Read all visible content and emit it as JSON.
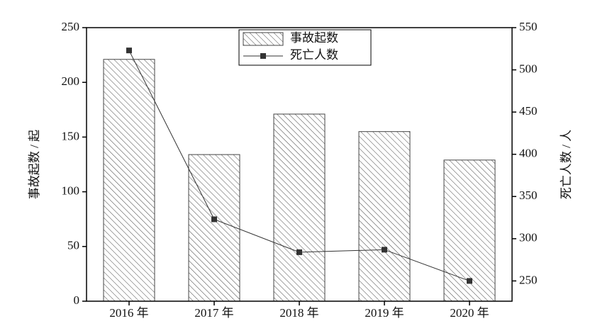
{
  "chart_data": {
    "type": "bar",
    "categories": [
      "2016 年",
      "2017 年",
      "2018 年",
      "2019 年",
      "2020 年"
    ],
    "series": [
      {
        "name": "事故起数",
        "type": "bar",
        "color": "#444444",
        "values": [
          221,
          134,
          171,
          155,
          129
        ]
      },
      {
        "name": "死亡人数",
        "type": "line",
        "axis": "y2",
        "color": "#333333",
        "values": [
          523,
          323,
          284,
          287,
          250
        ]
      }
    ],
    "ylabel": "事故起数 / 起",
    "y2label": "死亡人数 / 人",
    "ylim": [
      0,
      250
    ],
    "yticks": [
      0,
      50,
      100,
      150,
      200,
      250
    ],
    "y2lim": [
      226,
      550
    ],
    "y2ticks": [
      250,
      300,
      350,
      400,
      450,
      500,
      550
    ],
    "legend": "top"
  }
}
